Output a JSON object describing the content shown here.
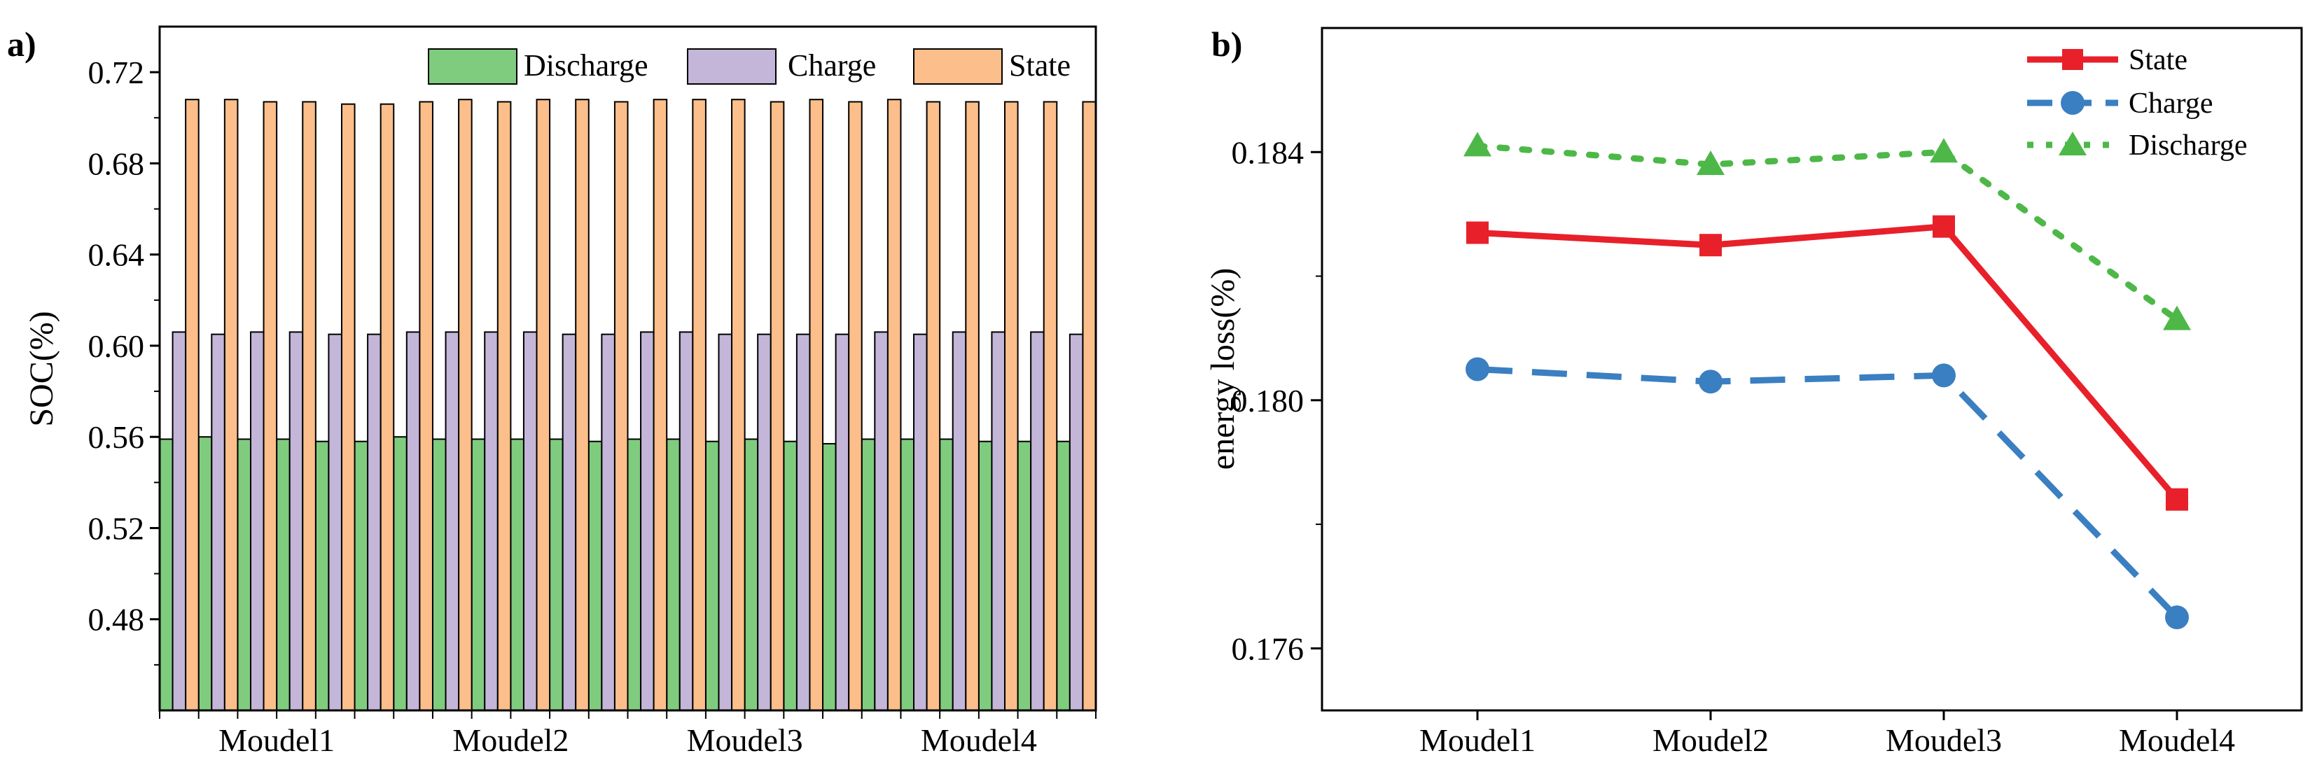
{
  "panel_labels": {
    "a": "a)",
    "b": "b)"
  },
  "chart_data": [
    {
      "type": "bar",
      "ylabel": "SOC(%)",
      "xlabel": "",
      "ylim": [
        0.44,
        0.74
      ],
      "yticks": [
        "0.48",
        "0.52",
        "0.56",
        "0.60",
        "0.64",
        "0.68",
        "0.72"
      ],
      "category_labels": [
        "Moudel1",
        "Moudel2",
        "Moudel3",
        "Moudel4"
      ],
      "cells_per_module": 6,
      "legend": [
        "Discharge",
        "Charge",
        "State"
      ],
      "colors": {
        "Discharge": "#7fcc7f",
        "Charge": "#c3b6d8",
        "State": "#fcbe8a"
      },
      "series": [
        {
          "name": "Discharge",
          "values": [
            0.559,
            0.56,
            0.559,
            0.559,
            0.558,
            0.558,
            0.56,
            0.559,
            0.559,
            0.559,
            0.559,
            0.558,
            0.559,
            0.559,
            0.558,
            0.559,
            0.558,
            0.557,
            0.559,
            0.559,
            0.559,
            0.558,
            0.558,
            0.558
          ]
        },
        {
          "name": "Charge",
          "values": [
            0.606,
            0.605,
            0.606,
            0.606,
            0.605,
            0.605,
            0.606,
            0.606,
            0.606,
            0.606,
            0.605,
            0.605,
            0.606,
            0.606,
            0.605,
            0.605,
            0.605,
            0.605,
            0.606,
            0.605,
            0.606,
            0.606,
            0.606,
            0.605
          ]
        },
        {
          "name": "State",
          "values": [
            0.708,
            0.708,
            0.707,
            0.707,
            0.706,
            0.706,
            0.707,
            0.708,
            0.707,
            0.708,
            0.708,
            0.707,
            0.708,
            0.708,
            0.708,
            0.707,
            0.708,
            0.707,
            0.708,
            0.707,
            0.707,
            0.707,
            0.707,
            0.707
          ]
        }
      ]
    },
    {
      "type": "line",
      "ylabel": "energy loss(%)",
      "xlabel": "",
      "ylim": [
        0.175,
        0.186
      ],
      "yticks": [
        "0.176",
        "0.180",
        "0.184"
      ],
      "categories": [
        "Moudel1",
        "Moudel2",
        "Moudel3",
        "Moudel4"
      ],
      "legend": [
        "State",
        "Charge",
        "Discharge"
      ],
      "series": [
        {
          "name": "State",
          "color": "#e8202a",
          "marker": "square",
          "style": "solid",
          "values": [
            0.1827,
            0.1825,
            0.1828,
            0.1784
          ]
        },
        {
          "name": "Charge",
          "color": "#3a7fc1",
          "marker": "circle",
          "style": "dashed",
          "values": [
            0.1805,
            0.1803,
            0.1804,
            0.1765
          ]
        },
        {
          "name": "Discharge",
          "color": "#4db848",
          "marker": "triangle",
          "style": "dotted",
          "values": [
            0.1841,
            0.1838,
            0.184,
            0.1813
          ]
        }
      ]
    }
  ]
}
